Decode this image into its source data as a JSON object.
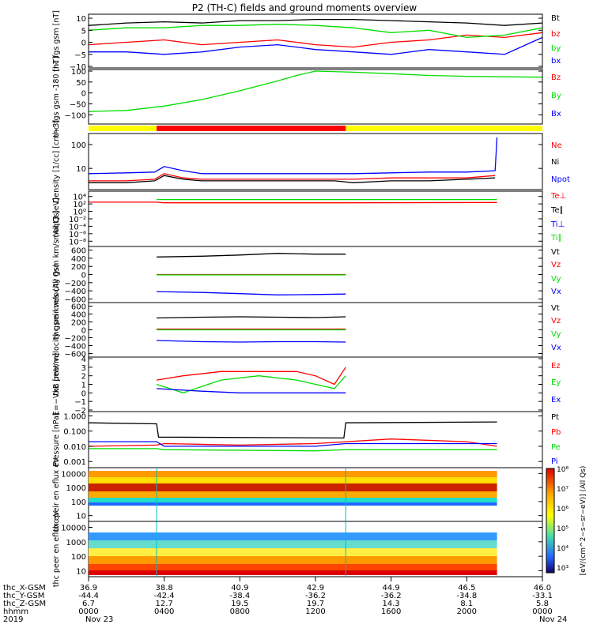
{
  "title": "P2 (TH-C) fields and ground moments overview",
  "colors": {
    "black": "#000000",
    "red": "#ff0000",
    "green": "#00dd00",
    "blue": "#0000ff",
    "yellow": "#ffff00",
    "cyan": "#00c0c0"
  },
  "time_axis": {
    "row_labels": [
      "thc_X-GSM",
      "thc_Y-GSM",
      "thc_Z-GSM",
      "hhmm",
      "2019"
    ],
    "columns": [
      {
        "values": [
          "36.9",
          "-44.4",
          "6.7",
          "0000",
          "Nov 23"
        ]
      },
      {
        "values": [
          "38.8",
          "-42.4",
          "12.7",
          "0400",
          ""
        ]
      },
      {
        "values": [
          "40.9",
          "-38.4",
          "19.5",
          "0800",
          ""
        ]
      },
      {
        "values": [
          "42.9",
          "-36.2",
          "19.7",
          "1200",
          ""
        ]
      },
      {
        "values": [
          "44.9",
          "-36.2",
          "14.3",
          "1600",
          ""
        ]
      },
      {
        "values": [
          "46.5",
          "-34.8",
          "8.1",
          "2000",
          ""
        ]
      },
      {
        "values": [
          "46.0",
          "-33.1",
          "5.8",
          "0000",
          "Nov 24"
        ]
      }
    ],
    "range_hours": [
      0,
      24
    ]
  },
  "chart_data": [
    {
      "type": "line",
      "ylabel": "thc fgs gsm [nT]",
      "yticks": [
        "10",
        "5",
        "0",
        "−5",
        "−10"
      ],
      "ylim": [
        -10,
        11
      ],
      "legend": [
        "Bt",
        "bz",
        "by",
        "bx"
      ],
      "series": [
        {
          "name": "Bt",
          "color": "#000000",
          "x": [
            0,
            2,
            4,
            6,
            8,
            10,
            12,
            14,
            16,
            18,
            20,
            22,
            24
          ],
          "values": [
            7,
            8,
            8.5,
            8,
            9,
            9,
            9.5,
            9.5,
            9,
            8.5,
            8,
            7,
            8
          ]
        },
        {
          "name": "bz",
          "color": "#ff0000",
          "x": [
            0,
            2,
            4,
            6,
            8,
            10,
            12,
            14,
            16,
            18,
            20,
            22,
            24
          ],
          "values": [
            -1,
            0,
            1,
            -1,
            0,
            1,
            -1,
            -2,
            0,
            1,
            3,
            2,
            4
          ]
        },
        {
          "name": "by",
          "color": "#00dd00",
          "x": [
            0,
            2,
            4,
            6,
            8,
            10,
            12,
            14,
            16,
            18,
            20,
            22,
            24
          ],
          "values": [
            5,
            6,
            6,
            7,
            7,
            7.5,
            7,
            6,
            4,
            5,
            2,
            3,
            6
          ]
        },
        {
          "name": "bx",
          "color": "#0000ff",
          "x": [
            0,
            2,
            4,
            6,
            8,
            10,
            12,
            14,
            16,
            18,
            20,
            22,
            24
          ],
          "values": [
            -4,
            -4,
            -5,
            -4,
            -2,
            -1,
            -3,
            -4,
            -5,
            -3,
            -4,
            -5,
            2
          ]
        }
      ]
    },
    {
      "type": "line",
      "ylabel": "thc fgs gsm -180 [nT]",
      "yticks": [
        "100",
        "50",
        "0",
        "−50",
        "−100"
      ],
      "ylim": [
        -135,
        100
      ],
      "legend": [
        "Bz",
        "By",
        "Bx"
      ],
      "series": [
        {
          "name": "By",
          "color": "#00dd00",
          "x": [
            0,
            2,
            4,
            6,
            8,
            10,
            11,
            12,
            14,
            16,
            18,
            20,
            22,
            24
          ],
          "values": [
            -85,
            -80,
            -60,
            -30,
            10,
            55,
            80,
            100,
            95,
            88,
            80,
            76,
            74,
            72
          ]
        }
      ]
    },
    {
      "type": "line",
      "ylabel": "Density [1/cc] [cm−3]",
      "yticks": [
        "100",
        "10"
      ],
      "ylim": [
        1.5,
        250
      ],
      "yscale": "log",
      "legend": [
        "Ne",
        "Ni",
        "Npot"
      ],
      "series": [
        {
          "name": "Ne",
          "color": "#ff0000",
          "x": [
            0,
            2,
            3.5,
            4,
            5,
            6,
            8,
            10,
            12,
            14,
            16,
            18,
            20,
            21.5
          ],
          "values": [
            3,
            3,
            3.5,
            6,
            4,
            3.5,
            3.5,
            3.5,
            3.5,
            3.5,
            4,
            4,
            4,
            5
          ]
        },
        {
          "name": "Ni",
          "color": "#000000",
          "x": [
            0,
            2,
            3.5,
            4,
            5,
            6,
            8,
            10,
            12,
            13,
            14,
            16,
            18,
            20,
            21.5
          ],
          "values": [
            2.5,
            2.5,
            3,
            5,
            3.5,
            3,
            3,
            3,
            3,
            3,
            2.5,
            3,
            3,
            3.5,
            4
          ]
        },
        {
          "name": "Npot",
          "color": "#0000ff",
          "x": [
            0,
            2,
            3.5,
            4,
            5,
            6,
            8,
            10,
            12,
            14,
            16,
            18,
            20,
            21.5,
            21.6
          ],
          "values": [
            6,
            6.5,
            7,
            12,
            8,
            6,
            6,
            6,
            6,
            6,
            6.5,
            7,
            7,
            8,
            200
          ]
        }
      ]
    },
    {
      "type": "line",
      "ylabel": "moqt3 [eV]",
      "yticks": [
        "10⁴",
        "10²",
        "10⁰",
        "10⁻²",
        "10⁻⁴",
        "10⁻⁶",
        "10⁻⁸"
      ],
      "ylim": [
        1e-09,
        100000.0
      ],
      "yscale": "log",
      "legend": [
        "Te⊥",
        "Te∥",
        "Ti⊥",
        "Ti∥"
      ],
      "series": [
        {
          "name": "Te⊥",
          "color": "#ff0000",
          "x": [
            0,
            3.6,
            4,
            12,
            13.6,
            21.6
          ],
          "values": [
            300,
            300,
            200,
            200,
            200,
            250
          ]
        },
        {
          "name": "Ti∥",
          "color": "#00dd00",
          "x": [
            3.6,
            21.6
          ],
          "values": [
            1500,
            1500
          ]
        }
      ]
    },
    {
      "type": "line",
      "ylabel": "thc peir velocity gsm km/s (All Qs)",
      "yticks": [
        "600",
        "400",
        "200",
        "0",
        "−200",
        "−400",
        "−600"
      ],
      "ylim": [
        -650,
        650
      ],
      "legend": [
        "Vt",
        "Vz",
        "Vy",
        "Vx"
      ],
      "series": [
        {
          "name": "Vt",
          "color": "#000000",
          "x": [
            3.6,
            6,
            8,
            10,
            12,
            13.6
          ],
          "values": [
            430,
            450,
            480,
            520,
            500,
            500
          ]
        },
        {
          "name": "Vz",
          "color": "#ff0000",
          "x": [
            3.6,
            13.6
          ],
          "values": [
            0,
            0
          ]
        },
        {
          "name": "Vy",
          "color": "#00dd00",
          "x": [
            3.6,
            13.6
          ],
          "values": [
            -10,
            -10
          ]
        },
        {
          "name": "Vx",
          "color": "#0000ff",
          "x": [
            3.6,
            6,
            8,
            10,
            12,
            13.6
          ],
          "values": [
            -420,
            -440,
            -470,
            -500,
            -490,
            -480
          ]
        }
      ]
    },
    {
      "type": "line",
      "ylabel": "thc peer velocity gsm km/s (All Qs)",
      "yticks": [
        "600",
        "400",
        "200",
        "0",
        "−200",
        "−400",
        "−600"
      ],
      "ylim": [
        -650,
        650
      ],
      "legend": [
        "Vt",
        "Vz",
        "Vy",
        "Vx"
      ],
      "series": [
        {
          "name": "Vt",
          "color": "#000000",
          "x": [
            3.6,
            6,
            8,
            10,
            12,
            13.6
          ],
          "values": [
            300,
            320,
            330,
            320,
            310,
            330
          ]
        },
        {
          "name": "Vz",
          "color": "#ff0000",
          "x": [
            3.6,
            13.6
          ],
          "values": [
            20,
            20
          ]
        },
        {
          "name": "Vy",
          "color": "#00dd00",
          "x": [
            3.6,
            13.6
          ],
          "values": [
            0,
            0
          ]
        },
        {
          "name": "Vx",
          "color": "#0000ff",
          "x": [
            3.6,
            6,
            8,
            10,
            12,
            13.6
          ],
          "values": [
            -270,
            -300,
            -310,
            -300,
            -300,
            -310
          ]
        }
      ]
    },
    {
      "type": "line",
      "ylabel": "E=−VxB [mV/m]",
      "yticks": [
        "4",
        "3",
        "2",
        "1",
        "0",
        "−1",
        "−2"
      ],
      "ylim": [
        -2,
        4
      ],
      "legend": [
        "Ez",
        "Ey",
        "Ex"
      ],
      "series": [
        {
          "name": "Ez",
          "color": "#ff0000",
          "x": [
            3.6,
            5,
            7,
            9,
            11,
            12,
            13,
            13.6
          ],
          "values": [
            1.5,
            2,
            2.5,
            2.5,
            2.5,
            2,
            1,
            3
          ]
        },
        {
          "name": "Ey",
          "color": "#00dd00",
          "x": [
            3.6,
            5,
            7,
            9,
            11,
            12,
            13,
            13.6
          ],
          "values": [
            1,
            0,
            1.5,
            2,
            1.5,
            1,
            0.5,
            2
          ]
        },
        {
          "name": "Ex",
          "color": "#0000ff",
          "x": [
            3.6,
            6,
            8,
            10,
            12,
            13.6
          ],
          "values": [
            0.5,
            0.2,
            0,
            0,
            0,
            0
          ]
        }
      ]
    },
    {
      "type": "line",
      "ylabel": "Pressure [nPa]",
      "yticks": [
        "1.000",
        "0.100",
        "0.010",
        "0.001"
      ],
      "ylim": [
        0.0005,
        1.5
      ],
      "yscale": "log",
      "legend": [
        "Pt",
        "Pb",
        "Pe",
        "Pi"
      ],
      "series": [
        {
          "name": "Pt",
          "color": "#000000",
          "x": [
            0,
            3.6,
            3.7,
            13.5,
            13.6,
            21.6
          ],
          "values": [
            0.35,
            0.3,
            0.04,
            0.035,
            0.35,
            0.4
          ]
        },
        {
          "name": "Pb",
          "color": "#ff0000",
          "x": [
            0,
            3.6,
            4,
            8,
            12,
            16,
            20,
            21.6
          ],
          "values": [
            0.01,
            0.012,
            0.015,
            0.012,
            0.015,
            0.03,
            0.02,
            0.01
          ]
        },
        {
          "name": "Pe",
          "color": "#00dd00",
          "x": [
            0,
            3.6,
            4,
            12,
            13.6,
            21.6
          ],
          "values": [
            0.007,
            0.007,
            0.006,
            0.005,
            0.006,
            0.006
          ]
        },
        {
          "name": "Pi",
          "color": "#0000ff",
          "x": [
            0,
            3.6,
            4,
            12,
            13.6,
            21.6
          ],
          "values": [
            0.02,
            0.02,
            0.01,
            0.01,
            0.015,
            0.015
          ]
        }
      ]
    },
    {
      "type": "heatmap",
      "ylabel": "thc peir en eflux eV",
      "yticks": [
        "10000",
        "1000",
        "100",
        "10"
      ],
      "ylim": [
        5,
        20000
      ],
      "yscale": "log"
    },
    {
      "type": "heatmap",
      "ylabel": "thc peer en eflux eV",
      "yticks": [
        "10000",
        "1000",
        "100",
        "10"
      ],
      "ylim": [
        5,
        20000
      ],
      "yscale": "log"
    }
  ],
  "colorbar": {
    "labels": [
      "10⁸",
      "10⁷",
      "10⁶",
      "10⁵",
      "10⁴",
      "10³"
    ],
    "label": "[eV/(cm^2−s−sr−eV)] (All Qs)"
  }
}
